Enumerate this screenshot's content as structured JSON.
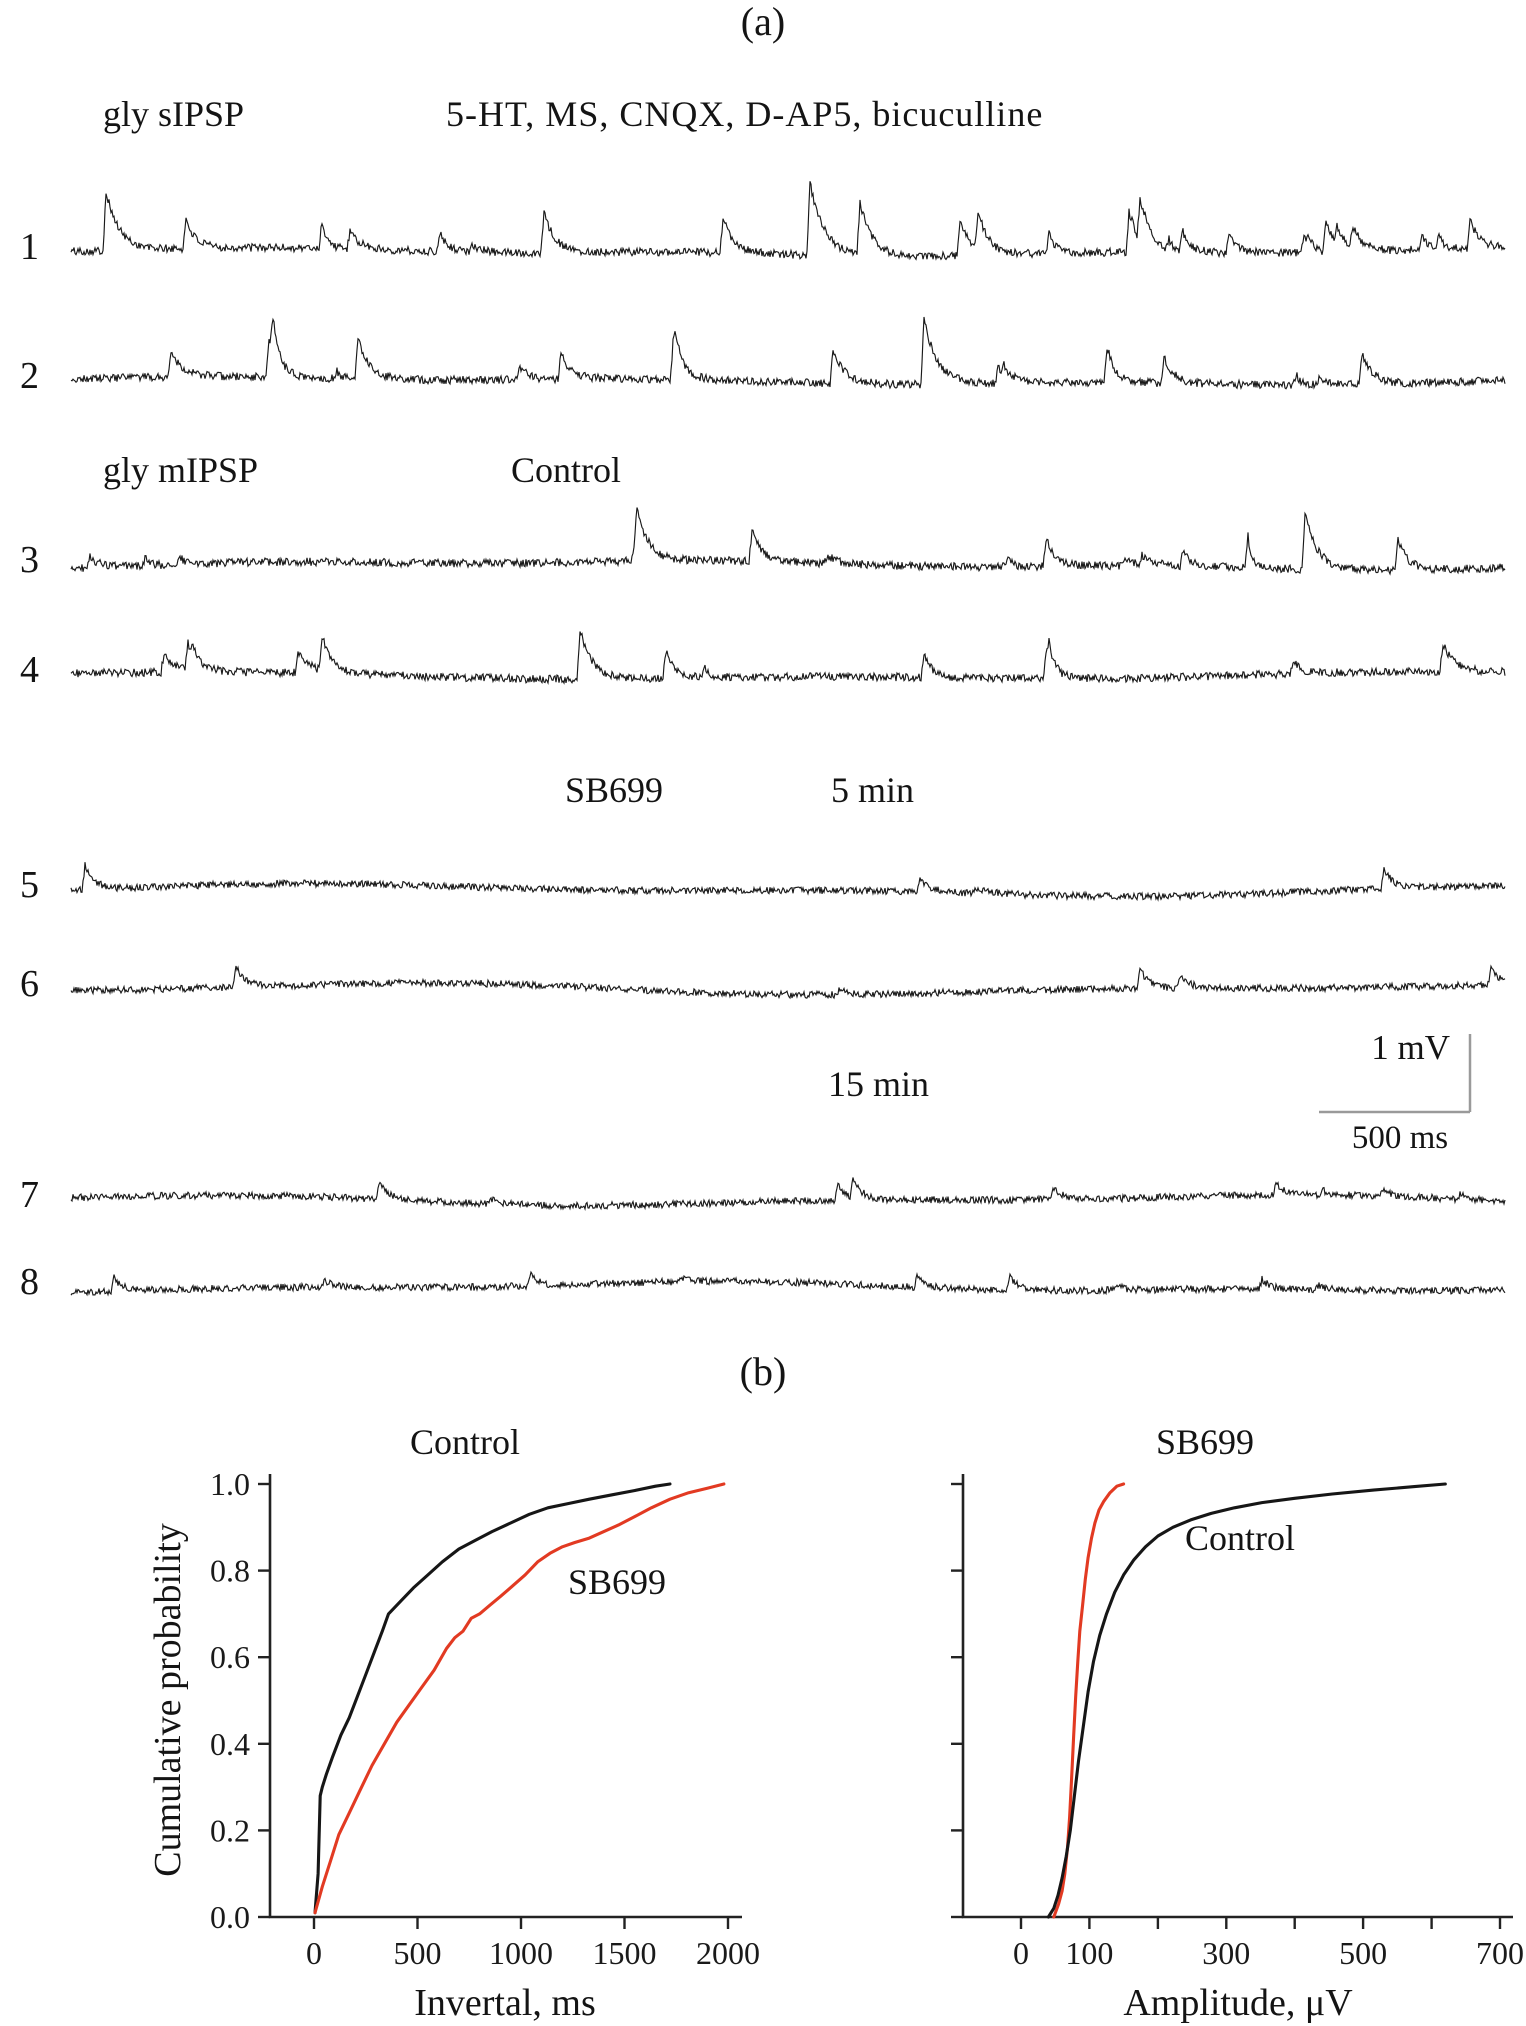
{
  "panel_a": {
    "label": "(a)",
    "group1_label": "gly sIPSP",
    "drugs_label": "5-HT, MS, CNQX, D-AP5, bicuculline",
    "group2_label": "gly mIPSP",
    "condition_control": "Control",
    "condition_drug": "SB699",
    "time_5min": "5 min",
    "time_15min": "15 min",
    "scalebar": {
      "vertical": "1 mV",
      "horizontal": "500 ms"
    },
    "traces": [
      {
        "num": "1",
        "condition": "gly sIPSP, 5-HT, MS, CNQX, D-AP5, bicuculline",
        "seed": 101,
        "noise": 4,
        "wander": 3,
        "spikes": 20,
        "spike_min": 8,
        "spike_max": 40,
        "features": [
          [
            0.025,
            60
          ],
          [
            0.33,
            40
          ],
          [
            0.455,
            35
          ],
          [
            0.515,
            72
          ],
          [
            0.55,
            52
          ],
          [
            0.62,
            38
          ],
          [
            0.745,
            40
          ],
          [
            0.875,
            30
          ],
          [
            0.975,
            28
          ]
        ]
      },
      {
        "num": "2",
        "condition": "gly sIPSP, 5-HT, MS, CNQX, D-AP5, bicuculline",
        "seed": 202,
        "noise": 4,
        "wander": 3,
        "spikes": 14,
        "spike_min": 8,
        "spike_max": 38,
        "features": [
          [
            0.2,
            42
          ],
          [
            0.42,
            30
          ],
          [
            0.595,
            65
          ],
          [
            0.9,
            32
          ]
        ]
      },
      {
        "num": "3",
        "condition": "gly mIPSP, Control",
        "seed": 303,
        "noise": 4,
        "wander": 3.5,
        "spikes": 10,
        "spike_min": 8,
        "spike_max": 32,
        "features": [
          [
            0.395,
            42
          ],
          [
            0.475,
            30
          ],
          [
            0.68,
            28
          ],
          [
            0.86,
            55
          ],
          [
            0.925,
            30
          ]
        ]
      },
      {
        "num": "4",
        "condition": "gly mIPSP, Control",
        "seed": 404,
        "noise": 4,
        "wander": 3.5,
        "spikes": 9,
        "spike_min": 8,
        "spike_max": 28,
        "features": [
          [
            0.175,
            35
          ],
          [
            0.355,
            50
          ],
          [
            0.415,
            28
          ],
          [
            0.68,
            22
          ]
        ]
      },
      {
        "num": "5",
        "condition": "SB699, 5 min",
        "seed": 505,
        "noise": 3.5,
        "wander": 4.5,
        "spikes": 2,
        "spike_min": 6,
        "spike_max": 14,
        "features": [
          [
            0.01,
            25
          ],
          [
            0.915,
            20
          ]
        ]
      },
      {
        "num": "6",
        "condition": "SB699, 5 min",
        "seed": 606,
        "noise": 3.5,
        "wander": 4.5,
        "spikes": 2,
        "spike_min": 6,
        "spike_max": 14,
        "features": [
          [
            0.115,
            22
          ],
          [
            0.745,
            20
          ],
          [
            0.99,
            18
          ]
        ]
      },
      {
        "num": "7",
        "condition": "SB699, 15 min",
        "seed": 707,
        "noise": 3.5,
        "wander": 4,
        "spikes": 4,
        "spike_min": 5,
        "spike_max": 12,
        "features": [
          [
            0.215,
            18
          ],
          [
            0.535,
            16
          ],
          [
            0.545,
            20
          ],
          [
            0.685,
            14
          ],
          [
            0.84,
            12
          ]
        ]
      },
      {
        "num": "8",
        "condition": "SB699, 15 min",
        "seed": 808,
        "noise": 3.5,
        "wander": 4,
        "spikes": 4,
        "spike_min": 5,
        "spike_max": 10,
        "features": [
          [
            0.03,
            14
          ],
          [
            0.32,
            12
          ],
          [
            0.59,
            12
          ],
          [
            0.655,
            14
          ],
          [
            0.83,
            10
          ]
        ]
      }
    ]
  },
  "panel_b": {
    "label": "(b)"
  },
  "chart_data": [
    {
      "type": "line",
      "title": "",
      "xlabel": "Invertal, ms",
      "ylabel": "Cumulative probability",
      "xlim": [
        0,
        2000
      ],
      "ylim": [
        0,
        1
      ],
      "grid": false,
      "legend_position": "annotations",
      "xticks": [
        0,
        500,
        1000,
        1500,
        2000
      ],
      "xtick_labels": [
        "0",
        "500",
        "1000",
        "1500",
        "2000"
      ],
      "yticks": [
        0,
        0.2,
        0.4,
        0.6,
        0.8,
        1
      ],
      "ytick_labels": [
        "0.0",
        "0.2",
        "0.4",
        "0.6",
        "0.8",
        "1.0"
      ],
      "series": [
        {
          "name": "Control",
          "color": "#161616",
          "x": [
            5,
            20,
            30,
            40,
            60,
            90,
            130,
            170,
            210,
            250,
            290,
            330,
            360,
            420,
            480,
            550,
            620,
            700,
            780,
            860,
            950,
            1040,
            1130,
            1230,
            1330,
            1440,
            1550,
            1650,
            1720
          ],
          "y": [
            0.01,
            0.1,
            0.28,
            0.3,
            0.33,
            0.37,
            0.42,
            0.46,
            0.51,
            0.56,
            0.61,
            0.66,
            0.7,
            0.73,
            0.76,
            0.79,
            0.82,
            0.85,
            0.87,
            0.89,
            0.91,
            0.93,
            0.945,
            0.955,
            0.965,
            0.975,
            0.985,
            0.995,
            1.0
          ]
        },
        {
          "name": "SB699",
          "color": "#e23a22",
          "x": [
            5,
            40,
            80,
            120,
            170,
            220,
            280,
            340,
            400,
            460,
            520,
            580,
            640,
            680,
            720,
            760,
            800,
            850,
            900,
            960,
            1020,
            1080,
            1140,
            1200,
            1260,
            1330,
            1400,
            1470,
            1550,
            1630,
            1720,
            1810,
            1900,
            1980
          ],
          "y": [
            0.01,
            0.07,
            0.13,
            0.19,
            0.24,
            0.29,
            0.35,
            0.4,
            0.45,
            0.49,
            0.53,
            0.57,
            0.62,
            0.645,
            0.66,
            0.69,
            0.7,
            0.72,
            0.74,
            0.765,
            0.79,
            0.82,
            0.84,
            0.855,
            0.865,
            0.875,
            0.89,
            0.905,
            0.925,
            0.945,
            0.965,
            0.98,
            0.99,
            1.0
          ]
        }
      ],
      "annotations": [
        {
          "text": "Control",
          "x": 730,
          "y": 1.09
        },
        {
          "text": "SB699",
          "x": 1430,
          "y": 0.77
        }
      ]
    },
    {
      "type": "line",
      "title": "",
      "xlabel": "Amplitude, μV",
      "ylabel": "",
      "xlim": [
        0,
        700
      ],
      "ylim": [
        0,
        1
      ],
      "grid": false,
      "legend_position": "annotations",
      "xticks": [
        0,
        100,
        200,
        300,
        400,
        500,
        600,
        700
      ],
      "xtick_labels": [
        "0",
        "100",
        "",
        "300",
        "",
        "500",
        "",
        "700"
      ],
      "yticks": [
        0,
        0.2,
        0.4,
        0.6,
        0.8,
        1
      ],
      "ytick_labels": [
        "",
        "",
        "",
        "",
        "",
        ""
      ],
      "series": [
        {
          "name": "SB699",
          "color": "#e23a22",
          "x": [
            48,
            55,
            60,
            64,
            68,
            71,
            74,
            77,
            80,
            83,
            86,
            90,
            94,
            98,
            103,
            108,
            114,
            121,
            130,
            140,
            150
          ],
          "y": [
            0.0,
            0.03,
            0.06,
            0.1,
            0.16,
            0.23,
            0.32,
            0.42,
            0.51,
            0.59,
            0.66,
            0.72,
            0.78,
            0.83,
            0.875,
            0.91,
            0.94,
            0.96,
            0.98,
            0.995,
            1.0
          ]
        },
        {
          "name": "Control",
          "color": "#161616",
          "x": [
            40,
            48,
            54,
            60,
            66,
            72,
            78,
            84,
            91,
            98,
            106,
            115,
            125,
            137,
            150,
            165,
            182,
            200,
            222,
            248,
            278,
            312,
            352,
            400,
            455,
            515,
            575,
            620
          ],
          "y": [
            0.0,
            0.02,
            0.05,
            0.09,
            0.14,
            0.2,
            0.28,
            0.36,
            0.44,
            0.52,
            0.59,
            0.65,
            0.7,
            0.75,
            0.79,
            0.825,
            0.855,
            0.88,
            0.9,
            0.917,
            0.932,
            0.945,
            0.957,
            0.967,
            0.977,
            0.986,
            0.994,
            1.0
          ]
        }
      ],
      "annotations": [
        {
          "text": "SB699",
          "x": 265,
          "y": 1.09
        },
        {
          "text": "Control",
          "x": 300,
          "y": 0.87
        }
      ]
    }
  ]
}
